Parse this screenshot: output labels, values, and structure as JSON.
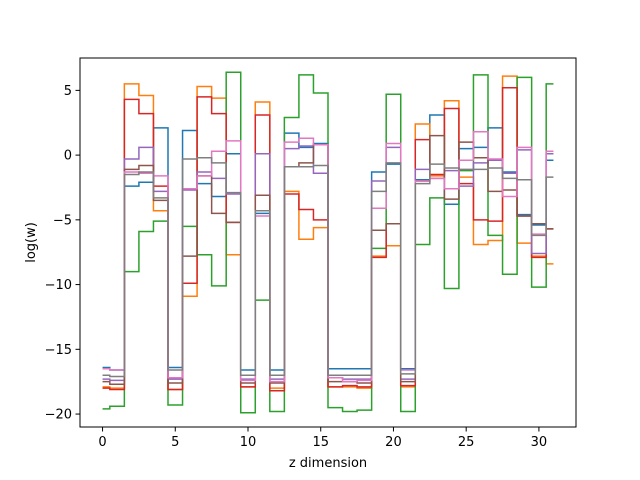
{
  "chart_data": {
    "type": "line",
    "drawstyle": "steps-mid",
    "xlabel": "z dimension",
    "ylabel": "log(w)",
    "xlim": [
      -1.55,
      32.55
    ],
    "ylim": [
      -21.0,
      7.5
    ],
    "xticks": [
      0,
      5,
      10,
      15,
      20,
      25,
      30
    ],
    "yticks": [
      -20,
      -15,
      -10,
      -5,
      0,
      5
    ],
    "grid": false,
    "x": [
      0,
      1,
      2,
      3,
      4,
      5,
      6,
      7,
      8,
      9,
      10,
      11,
      12,
      13,
      14,
      15,
      16,
      17,
      18,
      19,
      20,
      21,
      22,
      23,
      24,
      25,
      26,
      27,
      28,
      29,
      30,
      31
    ],
    "series": [
      {
        "color": "#1f77b4",
        "values": [
          -16.4,
          -16.6,
          -2.4,
          -2.1,
          2.1,
          -16.4,
          1.9,
          -2.2,
          -3.2,
          0.1,
          -16.6,
          -4.5,
          -16.6,
          1.7,
          0.6,
          0.9,
          -16.5,
          -16.5,
          -16.5,
          -1.3,
          -0.7,
          -16.5,
          -1.9,
          3.1,
          -3.8,
          0.5,
          0.6,
          2.1,
          -1.3,
          -4.6,
          -5.4,
          -0.4
        ]
      },
      {
        "color": "#ff7f0e",
        "values": [
          -17.9,
          -18.0,
          5.5,
          4.6,
          -4.3,
          -18.1,
          -10.9,
          5.3,
          4.4,
          -7.7,
          -17.9,
          4.1,
          -18.0,
          -2.8,
          -6.5,
          -5.6,
          -17.9,
          -17.9,
          -18.0,
          -7.8,
          -7.0,
          -17.9,
          2.4,
          -1.6,
          4.2,
          -1.7,
          -6.9,
          -6.6,
          6.1,
          -6.8,
          -7.8,
          -8.4
        ]
      },
      {
        "color": "#2ca02c",
        "values": [
          -19.6,
          -19.4,
          -9.0,
          -5.9,
          -5.1,
          -19.3,
          -5.5,
          -7.7,
          -10.1,
          6.4,
          -19.9,
          -11.2,
          -19.8,
          2.9,
          6.2,
          4.8,
          -19.5,
          -19.8,
          -19.7,
          -7.2,
          4.7,
          -19.8,
          -6.9,
          -3.3,
          -10.3,
          -1.2,
          6.2,
          -6.2,
          -9.2,
          6.0,
          -10.2,
          5.5
        ]
      },
      {
        "color": "#d62728",
        "values": [
          -18.0,
          -18.1,
          4.3,
          3.2,
          -2.4,
          -18.1,
          -9.9,
          4.5,
          3.2,
          -5.2,
          -17.9,
          3.1,
          -18.2,
          -3.0,
          -4.2,
          -5.0,
          -17.9,
          -17.8,
          -17.9,
          -7.9,
          -5.3,
          -17.8,
          1.2,
          -1.5,
          3.6,
          -2.2,
          -5.0,
          -5.1,
          5.2,
          -4.7,
          -7.9,
          -5.7
        ]
      },
      {
        "color": "#9467bd",
        "values": [
          -17.3,
          -17.4,
          -0.3,
          0.6,
          -2.8,
          -17.3,
          -2.7,
          -1.3,
          -1.8,
          -3.0,
          -17.3,
          0.1,
          -17.3,
          0.5,
          0.7,
          -1.4,
          -17.2,
          -17.3,
          -17.3,
          -2.0,
          0.6,
          -17.3,
          -1.1,
          -1.8,
          -1.2,
          -2.4,
          -0.6,
          -0.4,
          -1.4,
          0.4,
          -7.6,
          0.1
        ]
      },
      {
        "color": "#8c564b",
        "values": [
          -17.5,
          -17.7,
          -1.1,
          -0.8,
          -3.5,
          -17.6,
          -7.8,
          -1.6,
          -4.5,
          -5.2,
          -17.6,
          -3.1,
          -17.6,
          -0.9,
          -0.6,
          0.8,
          -17.5,
          -17.5,
          -17.6,
          -5.8,
          -5.3,
          -17.5,
          -2.0,
          1.5,
          -3.4,
          1.0,
          -0.2,
          -2.8,
          -2.7,
          -4.7,
          -5.3,
          -5.7
        ]
      },
      {
        "color": "#e377c2",
        "values": [
          -16.5,
          -16.6,
          -1.3,
          -1.4,
          -1.6,
          -17.2,
          -2.6,
          -1.6,
          0.3,
          1.1,
          -17.4,
          -4.7,
          -17.5,
          1.0,
          1.3,
          0.8,
          -17.2,
          -17.5,
          -17.4,
          -4.1,
          0.9,
          -16.6,
          -2.0,
          -1.8,
          -2.6,
          -0.4,
          1.8,
          -0.3,
          -3.2,
          0.6,
          -6.1,
          0.3
        ]
      },
      {
        "color": "#7f7f7f",
        "values": [
          -17.0,
          -17.1,
          -1.5,
          -1.3,
          -3.3,
          -16.6,
          -0.3,
          -0.2,
          -0.6,
          -2.9,
          -17.0,
          -4.3,
          -17.0,
          -0.9,
          -0.9,
          -0.8,
          -17.0,
          -17.0,
          -17.0,
          -2.8,
          -0.6,
          -16.9,
          -2.2,
          -0.7,
          -1.0,
          -1.1,
          -1.1,
          -1.0,
          -1.8,
          -1.9,
          -6.2,
          -1.7
        ]
      }
    ]
  }
}
